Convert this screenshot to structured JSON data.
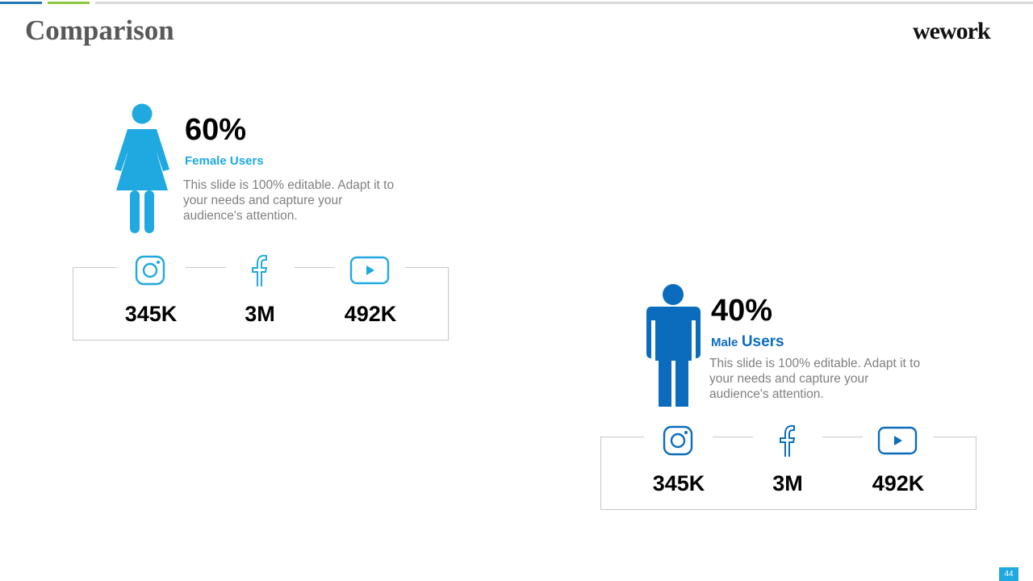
{
  "header": {
    "title": "Comparison",
    "logo_text": "wework"
  },
  "female": {
    "percent": "60%",
    "label": "Female Users",
    "description": "This slide is 100% editable. Adapt it to your needs and capture your audience's attention.",
    "color": "#1fa9e0",
    "stats": [
      {
        "icon": "instagram-icon",
        "value": "345K"
      },
      {
        "icon": "facebook-icon",
        "value": "3M"
      },
      {
        "icon": "youtube-icon",
        "value": "492K"
      }
    ]
  },
  "male": {
    "percent": "40%",
    "label_prefix": "Male",
    "label_suffix": "Users",
    "description": "This slide is 100% editable. Adapt it to your needs and capture your audience's attention.",
    "color": "#0b6cbd",
    "stats": [
      {
        "icon": "instagram-icon",
        "value": "345K"
      },
      {
        "icon": "facebook-icon",
        "value": "3M"
      },
      {
        "icon": "youtube-icon",
        "value": "492K"
      }
    ]
  },
  "footer": {
    "page_number": "44"
  },
  "colors": {
    "accent_blue": "#1f77b4",
    "accent_green": "#8dc63f",
    "divider": "#d9d9d9"
  }
}
